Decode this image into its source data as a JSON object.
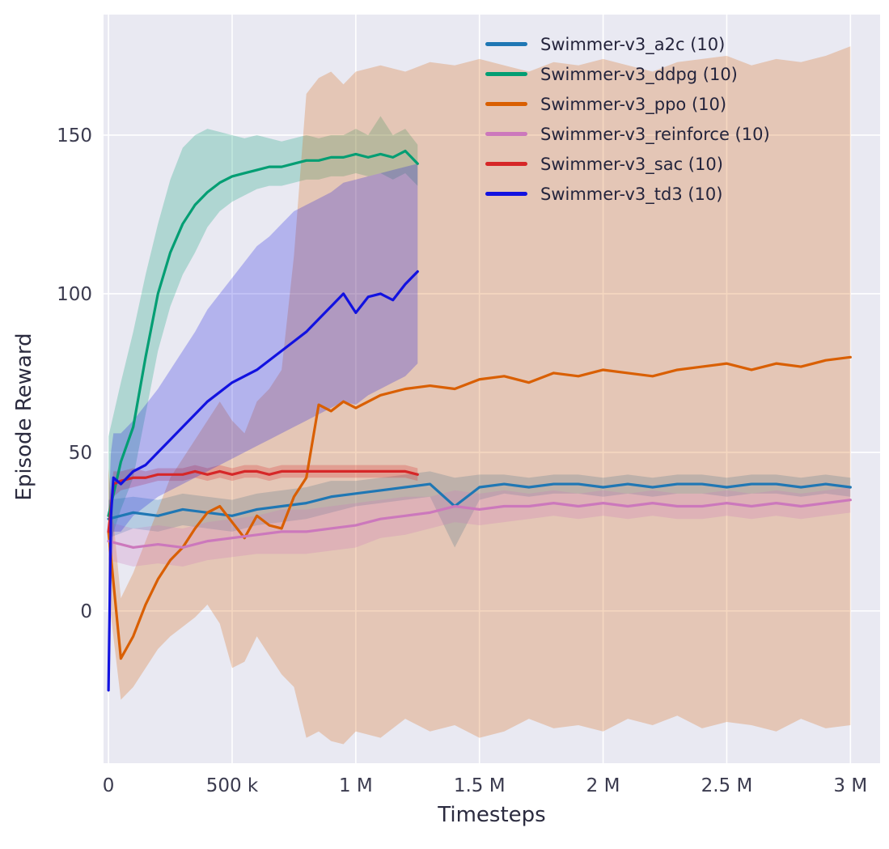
{
  "figure": {
    "background": "#ffffff",
    "axes_background": "#e9e9f2",
    "grid_color": "#ffffff",
    "tick_color": "#3b3b4f",
    "label_color": "#2b2b3f",
    "legend_text_color": "#24243c"
  },
  "chart_data": {
    "type": "line",
    "title": "",
    "xlabel": "Timesteps",
    "ylabel": "Episode Reward",
    "x_unit": "millions of timesteps",
    "xlim": [
      -0.02,
      3.12
    ],
    "ylim": [
      -48,
      188
    ],
    "grid": true,
    "legend_position": "upper right",
    "xticks": [
      {
        "v": 0,
        "label": "0"
      },
      {
        "v": 0.5,
        "label": "500 k"
      },
      {
        "v": 1,
        "label": "1 M"
      },
      {
        "v": 1.5,
        "label": "1.5 M"
      },
      {
        "v": 2,
        "label": "2 M"
      },
      {
        "v": 2.5,
        "label": "2.5 M"
      },
      {
        "v": 3,
        "label": "3 M"
      }
    ],
    "yticks": [
      {
        "v": 0,
        "label": "0"
      },
      {
        "v": 50,
        "label": "50"
      },
      {
        "v": 100,
        "label": "100"
      },
      {
        "v": 150,
        "label": "150"
      }
    ],
    "series": [
      {
        "name": "Swimmer-v3_a2c (10)",
        "color": "#1f77b4",
        "x": [
          0,
          0.1,
          0.2,
          0.3,
          0.4,
          0.5,
          0.6,
          0.7,
          0.8,
          0.9,
          1.0,
          1.1,
          1.2,
          1.3,
          1.4,
          1.5,
          1.6,
          1.7,
          1.8,
          1.9,
          2.0,
          2.1,
          2.2,
          2.3,
          2.4,
          2.5,
          2.6,
          2.7,
          2.8,
          2.9,
          3.0
        ],
        "y": [
          29,
          31,
          30,
          32,
          31,
          30,
          32,
          33,
          34,
          36,
          37,
          38,
          39,
          40,
          33,
          39,
          40,
          39,
          40,
          40,
          39,
          40,
          39,
          40,
          40,
          39,
          40,
          40,
          39,
          40,
          39
        ],
        "lo": [
          23,
          26,
          25,
          27,
          26,
          25,
          27,
          28,
          29,
          31,
          33,
          34,
          35,
          36,
          20,
          35,
          37,
          36,
          37,
          37,
          36,
          37,
          36,
          37,
          37,
          36,
          37,
          37,
          36,
          37,
          36
        ],
        "hi": [
          35,
          36,
          35,
          37,
          36,
          35,
          37,
          38,
          39,
          41,
          41,
          42,
          43,
          44,
          42,
          43,
          43,
          42,
          43,
          43,
          42,
          43,
          42,
          43,
          43,
          42,
          43,
          43,
          42,
          43,
          42
        ]
      },
      {
        "name": "Swimmer-v3_ddpg (10)",
        "color": "#029e73",
        "x": [
          0,
          0.05,
          0.1,
          0.15,
          0.2,
          0.25,
          0.3,
          0.35,
          0.4,
          0.45,
          0.5,
          0.55,
          0.6,
          0.65,
          0.7,
          0.75,
          0.8,
          0.85,
          0.9,
          0.95,
          1.0,
          1.05,
          1.1,
          1.15,
          1.2,
          1.25
        ],
        "y": [
          30,
          47,
          58,
          80,
          100,
          113,
          122,
          128,
          132,
          135,
          137,
          138,
          139,
          140,
          140,
          141,
          142,
          142,
          143,
          143,
          144,
          143,
          144,
          143,
          145,
          141
        ],
        "lo": [
          20,
          32,
          42,
          62,
          82,
          96,
          106,
          113,
          121,
          126,
          129,
          131,
          133,
          134,
          134,
          135,
          136,
          136,
          137,
          137,
          138,
          137,
          138,
          136,
          138,
          134
        ],
        "hi": [
          55,
          72,
          88,
          106,
          122,
          136,
          146,
          150,
          152,
          151,
          150,
          149,
          150,
          149,
          148,
          149,
          150,
          149,
          150,
          150,
          152,
          150,
          156,
          150,
          152,
          147
        ]
      },
      {
        "name": "Swimmer-v3_ppo (10)",
        "color": "#d95f02",
        "x": [
          0,
          0.05,
          0.1,
          0.15,
          0.2,
          0.25,
          0.3,
          0.35,
          0.4,
          0.45,
          0.5,
          0.55,
          0.6,
          0.65,
          0.7,
          0.75,
          0.8,
          0.85,
          0.9,
          0.95,
          1.0,
          1.1,
          1.2,
          1.3,
          1.4,
          1.5,
          1.6,
          1.7,
          1.8,
          1.9,
          2.0,
          2.1,
          2.2,
          2.3,
          2.4,
          2.5,
          2.6,
          2.7,
          2.8,
          2.9,
          3.0
        ],
        "y": [
          25,
          -15,
          -8,
          2,
          10,
          16,
          20,
          26,
          31,
          33,
          28,
          23,
          30,
          27,
          26,
          36,
          42,
          65,
          63,
          66,
          64,
          68,
          70,
          71,
          70,
          73,
          74,
          72,
          75,
          74,
          76,
          75,
          74,
          76,
          77,
          78,
          76,
          78,
          77,
          79,
          80
        ],
        "lo": [
          5,
          -28,
          -24,
          -18,
          -12,
          -8,
          -5,
          -2,
          2,
          -4,
          -18,
          -16,
          -8,
          -14,
          -20,
          -24,
          -40,
          -38,
          -41,
          -42,
          -38,
          -40,
          -34,
          -38,
          -36,
          -40,
          -38,
          -34,
          -37,
          -36,
          -38,
          -34,
          -36,
          -33,
          -37,
          -35,
          -36,
          -38,
          -34,
          -37,
          -36
        ],
        "hi": [
          45,
          4,
          12,
          22,
          32,
          42,
          48,
          54,
          60,
          66,
          60,
          56,
          66,
          70,
          76,
          112,
          163,
          168,
          170,
          166,
          170,
          172,
          170,
          173,
          172,
          174,
          172,
          170,
          173,
          172,
          174,
          172,
          170,
          173,
          174,
          175,
          172,
          174,
          173,
          175,
          178
        ]
      },
      {
        "name": "Swimmer-v3_reinforce (10)",
        "color": "#cc78bc",
        "x": [
          0,
          0.1,
          0.2,
          0.3,
          0.4,
          0.5,
          0.6,
          0.7,
          0.8,
          0.9,
          1.0,
          1.1,
          1.2,
          1.3,
          1.4,
          1.5,
          1.6,
          1.7,
          1.8,
          1.9,
          2.0,
          2.1,
          2.2,
          2.3,
          2.4,
          2.5,
          2.6,
          2.7,
          2.8,
          2.9,
          3.0
        ],
        "y": [
          22,
          20,
          21,
          20,
          22,
          23,
          24,
          25,
          25,
          26,
          27,
          29,
          30,
          31,
          33,
          32,
          33,
          33,
          34,
          33,
          34,
          33,
          34,
          33,
          33,
          34,
          33,
          34,
          33,
          34,
          35
        ],
        "lo": [
          16,
          14,
          15,
          14,
          16,
          17,
          18,
          18,
          18,
          19,
          20,
          23,
          24,
          26,
          28,
          27,
          28,
          29,
          30,
          29,
          30,
          29,
          30,
          29,
          29,
          30,
          29,
          30,
          29,
          30,
          31
        ],
        "hi": [
          28,
          26,
          27,
          26,
          28,
          29,
          30,
          32,
          32,
          33,
          34,
          35,
          36,
          36,
          38,
          37,
          38,
          37,
          38,
          37,
          38,
          37,
          38,
          37,
          37,
          38,
          37,
          38,
          37,
          38,
          39
        ]
      },
      {
        "name": "Swimmer-v3_sac (10)",
        "color": "#d62728",
        "x": [
          0,
          0.02,
          0.05,
          0.1,
          0.15,
          0.2,
          0.25,
          0.3,
          0.35,
          0.4,
          0.45,
          0.5,
          0.55,
          0.6,
          0.65,
          0.7,
          0.75,
          0.8,
          0.85,
          0.9,
          0.95,
          1.0,
          1.05,
          1.1,
          1.15,
          1.2,
          1.25
        ],
        "y": [
          25,
          40,
          41,
          42,
          42,
          43,
          43,
          43,
          44,
          43,
          44,
          43,
          44,
          44,
          43,
          44,
          44,
          44,
          44,
          44,
          44,
          44,
          44,
          44,
          44,
          44,
          43
        ],
        "lo": [
          18,
          36,
          38,
          39,
          40,
          41,
          41,
          41,
          42,
          41,
          42,
          41,
          42,
          42,
          41,
          42,
          42,
          42,
          42,
          42,
          42,
          42,
          42,
          42,
          42,
          42,
          41
        ],
        "hi": [
          32,
          44,
          44,
          45,
          44,
          45,
          45,
          45,
          46,
          45,
          46,
          45,
          46,
          46,
          45,
          46,
          46,
          46,
          46,
          46,
          46,
          46,
          46,
          46,
          46,
          46,
          45
        ]
      },
      {
        "name": "Swimmer-v3_td3 (10)",
        "color": "#1212e0",
        "x": [
          0,
          0.01,
          0.02,
          0.05,
          0.1,
          0.15,
          0.2,
          0.25,
          0.3,
          0.35,
          0.4,
          0.45,
          0.5,
          0.55,
          0.6,
          0.65,
          0.7,
          0.75,
          0.8,
          0.85,
          0.9,
          0.95,
          1.0,
          1.05,
          1.1,
          1.15,
          1.2,
          1.25
        ],
        "y": [
          -25,
          30,
          42,
          40,
          44,
          46,
          50,
          54,
          58,
          62,
          66,
          69,
          72,
          74,
          76,
          79,
          82,
          85,
          88,
          92,
          96,
          100,
          94,
          99,
          100,
          98,
          103,
          107
        ],
        "lo": [
          -27,
          5,
          25,
          25,
          30,
          33,
          36,
          38,
          40,
          42,
          44,
          46,
          48,
          50,
          52,
          54,
          56,
          58,
          60,
          62,
          64,
          66,
          65,
          68,
          70,
          72,
          74,
          78
        ],
        "hi": [
          30,
          50,
          56,
          56,
          60,
          65,
          70,
          76,
          82,
          88,
          95,
          100,
          105,
          110,
          115,
          118,
          122,
          126,
          128,
          130,
          132,
          135,
          136,
          137,
          138,
          139,
          140,
          141
        ]
      }
    ]
  }
}
